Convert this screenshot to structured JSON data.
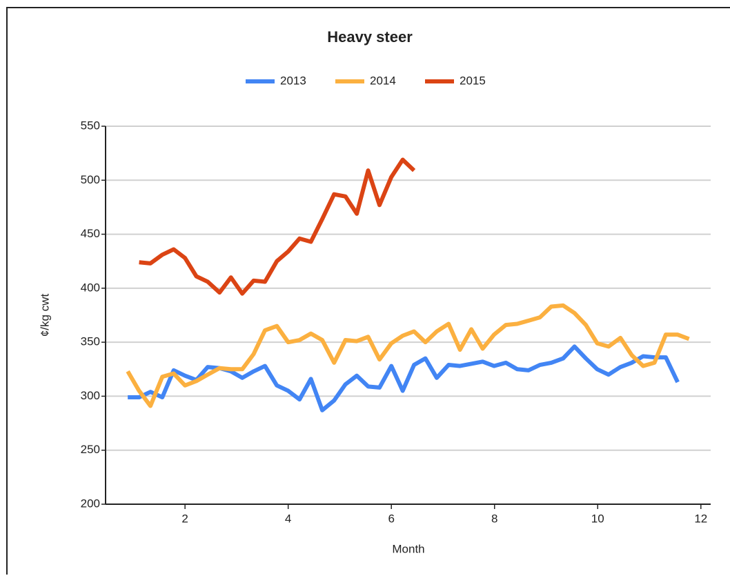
{
  "chart_data": {
    "type": "line",
    "title": "Heavy steer",
    "xlabel": "Month",
    "ylabel": "¢/kg cwt",
    "x": [
      0.89,
      1.11,
      1.33,
      1.56,
      1.78,
      2.0,
      2.22,
      2.44,
      2.67,
      2.89,
      3.11,
      3.33,
      3.55,
      3.78,
      4.0,
      4.22,
      4.44,
      4.66,
      4.89,
      5.11,
      5.33,
      5.55,
      5.77,
      6.0,
      6.22,
      6.44,
      6.66,
      6.88,
      7.11,
      7.33,
      7.55,
      7.77,
      7.99,
      8.22,
      8.44,
      8.66,
      8.88,
      9.1,
      9.33,
      9.55,
      9.77,
      9.99,
      10.21,
      10.44,
      10.66,
      10.88,
      11.1,
      11.32,
      11.55,
      11.77
    ],
    "series": [
      {
        "name": "2013",
        "color": "#4285f4",
        "values": [
          299,
          299,
          304,
          299,
          324,
          319,
          315,
          327,
          326,
          323,
          317,
          323,
          328,
          310,
          305,
          297,
          316,
          287,
          296,
          311,
          319,
          309,
          308,
          328,
          305,
          329,
          335,
          317,
          329,
          328,
          330,
          332,
          328,
          331,
          325,
          324,
          329,
          331,
          335,
          346,
          335,
          325,
          320,
          327,
          331,
          337,
          336,
          336,
          313,
          null
        ]
      },
      {
        "name": "2014",
        "color": "#fbb040",
        "values": [
          323,
          305,
          291,
          318,
          321,
          310,
          314,
          320,
          326,
          325,
          325,
          339,
          361,
          365,
          350,
          352,
          358,
          352,
          331,
          352,
          351,
          355,
          334,
          349,
          356,
          360,
          350,
          360,
          367,
          343,
          362,
          344,
          357,
          366,
          367,
          370,
          373,
          383,
          384,
          377,
          366,
          349,
          346,
          354,
          338,
          328,
          331,
          357,
          357,
          353
        ]
      },
      {
        "name": "2015",
        "color": "#db4414",
        "values": [
          null,
          424,
          423,
          431,
          436,
          428,
          411,
          406,
          396,
          410,
          395,
          407,
          406,
          425,
          434,
          446,
          443,
          464,
          487,
          485,
          469,
          509,
          477,
          503,
          519,
          509,
          null,
          null,
          null,
          null,
          null,
          null,
          null,
          null,
          null,
          null,
          null,
          null,
          null,
          null,
          null,
          null,
          null,
          null,
          null,
          null,
          null,
          null,
          null,
          null
        ]
      }
    ],
    "xlim": [
      0.46,
      12.19
    ],
    "xticks": [
      2,
      4,
      6,
      8,
      10,
      12
    ],
    "ylim": [
      200,
      550
    ],
    "yticks": [
      200,
      250,
      300,
      350,
      400,
      450,
      500,
      550
    ],
    "grid": true,
    "legend": "top"
  }
}
